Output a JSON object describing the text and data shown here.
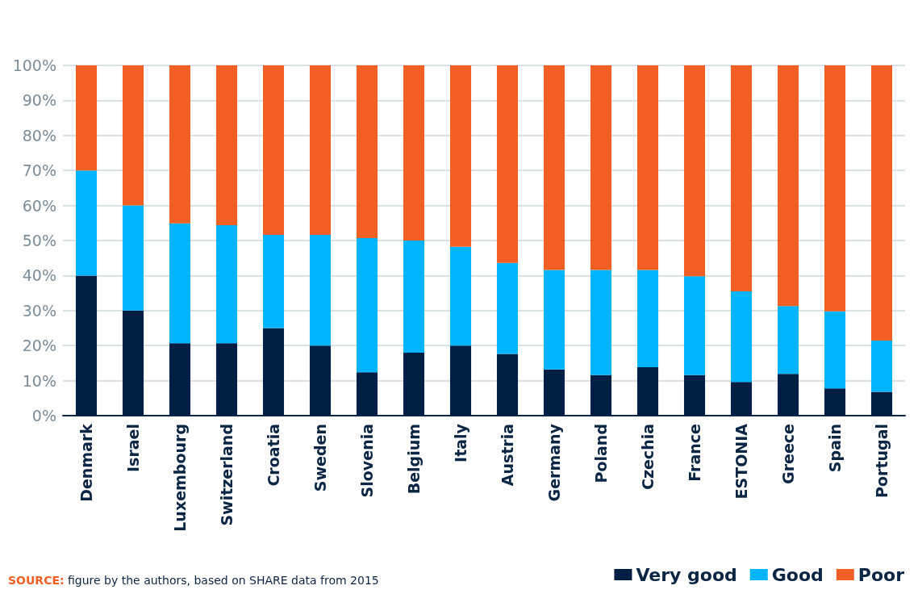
{
  "chart_data": {
    "type": "bar",
    "stacked": true,
    "categories": [
      "Denmark",
      "Israel",
      "Luxembourg",
      "Switzerland",
      "Croatia",
      "Sweden",
      "Slovenia",
      "Belgium",
      "Italy",
      "Austria",
      "Germany",
      "Poland",
      "Czechia",
      "France",
      "ESTONIA",
      "Greece",
      "Spain",
      "Portugal"
    ],
    "series": [
      {
        "name": "Very good",
        "color": "#001f45",
        "values": [
          40,
          30,
          20.7,
          20.7,
          25,
          20,
          12.4,
          18,
          20,
          17.6,
          13.2,
          11.6,
          13.8,
          11.6,
          9.6,
          11.9,
          7.8,
          6.8
        ]
      },
      {
        "name": "Good",
        "color": "#00b5fc",
        "values": [
          30,
          30,
          34.2,
          33.7,
          26.6,
          31.6,
          38.3,
          32,
          28.2,
          26,
          28.4,
          30,
          27.8,
          28.2,
          25.9,
          19.4,
          22,
          14.6
        ]
      },
      {
        "name": "Poor",
        "color": "#f15f24",
        "values": [
          30,
          40,
          45.1,
          45.6,
          48.4,
          48.4,
          49.3,
          50,
          51.8,
          56.4,
          58.4,
          58.4,
          58.4,
          60.2,
          64.5,
          68.7,
          70.2,
          78.6
        ]
      }
    ],
    "ylim": [
      0,
      100
    ],
    "yticks": [
      {
        "value": 0,
        "label": "0%"
      },
      {
        "value": 10,
        "label": "10%"
      },
      {
        "value": 20,
        "label": "20%"
      },
      {
        "value": 30,
        "label": "30%"
      },
      {
        "value": 40,
        "label": "40%"
      },
      {
        "value": 50,
        "label": "50%"
      },
      {
        "value": 60,
        "label": "60%"
      },
      {
        "value": 70,
        "label": "70%"
      },
      {
        "value": 80,
        "label": "80%"
      },
      {
        "value": 90,
        "label": "90%"
      },
      {
        "value": 100,
        "label": "100%"
      }
    ],
    "grid": "y",
    "legend": "bottom right",
    "annotations": [
      "SOURCE: figure by the authors, based on SHARE data from 2015"
    ]
  }
}
